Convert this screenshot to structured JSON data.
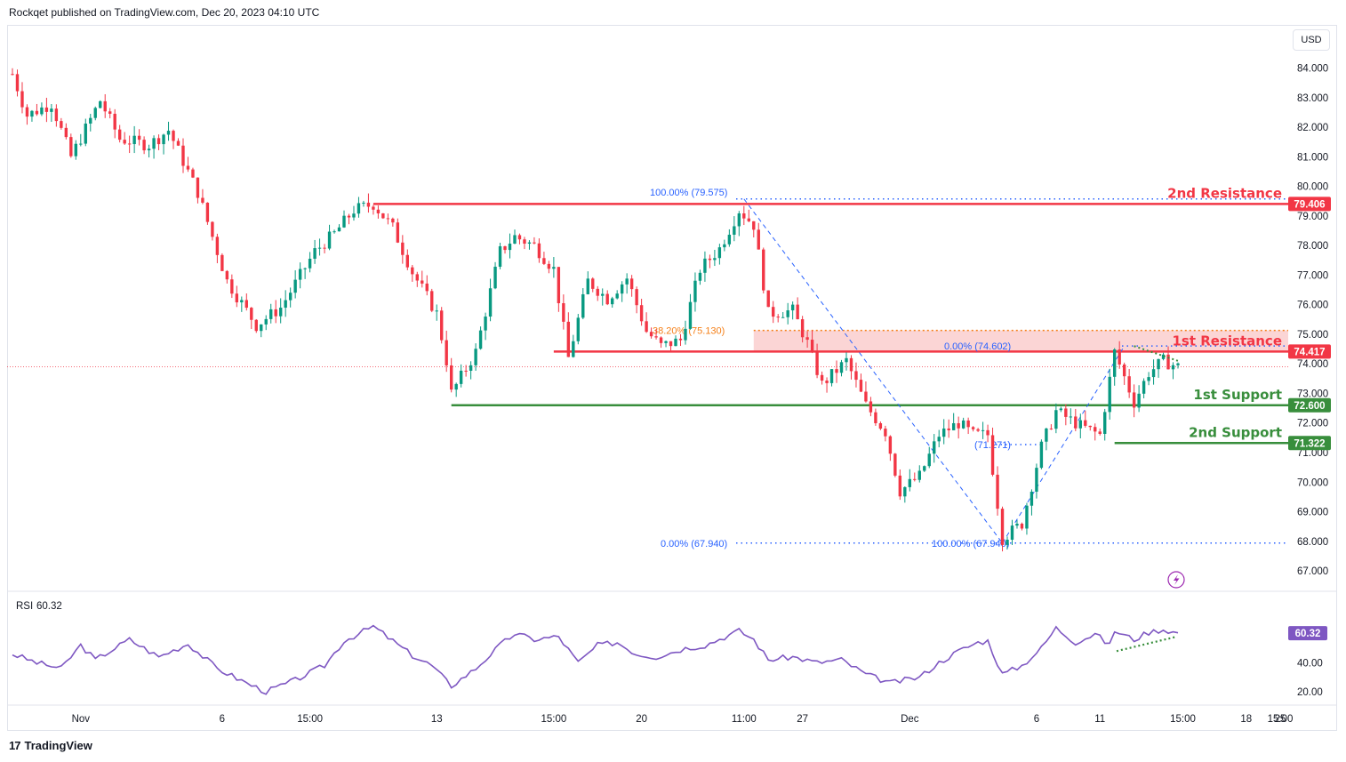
{
  "header": {
    "text": "Rockqet published on TradingView.com, Dec 20, 2023 04:10 UTC"
  },
  "currency_button": "USD",
  "footer": {
    "brand": "TradingView",
    "logo_mark": "17"
  },
  "chart_data": [
    {
      "type": "candlestick",
      "ylim": [
        66.4,
        85.4
      ],
      "y_ticks": [
        "84.000",
        "83.000",
        "82.000",
        "81.000",
        "80.000",
        "79.000",
        "78.000",
        "77.000",
        "76.000",
        "75.000",
        "74.000",
        "73.000",
        "72.000",
        "71.000",
        "70.000",
        "69.000",
        "68.000",
        "67.000"
      ],
      "x_ticks": [
        "Nov",
        "6",
        "15:00",
        "13",
        "15:00",
        "20",
        "11:00",
        "27",
        "Dec",
        "6",
        "11",
        "15:00",
        "18",
        "15:00",
        "25"
      ],
      "n_bars": 240,
      "anchors": [
        [
          0,
          83.8
        ],
        [
          3,
          82.4
        ],
        [
          8,
          82.8
        ],
        [
          12,
          81.0
        ],
        [
          18,
          82.9
        ],
        [
          22,
          81.6
        ],
        [
          28,
          81.4
        ],
        [
          32,
          81.9
        ],
        [
          38,
          79.8
        ],
        [
          44,
          76.8
        ],
        [
          50,
          75.3
        ],
        [
          55,
          75.9
        ],
        [
          62,
          77.8
        ],
        [
          66,
          78.4
        ],
        [
          70,
          79.2
        ],
        [
          74,
          79.4
        ],
        [
          78,
          78.6
        ],
        [
          82,
          77.1
        ],
        [
          87,
          75.7
        ],
        [
          89,
          74.1
        ],
        [
          90,
          73.0
        ],
        [
          95,
          74.4
        ],
        [
          100,
          77.8
        ],
        [
          103,
          78.3
        ],
        [
          107,
          78.0
        ],
        [
          111,
          77.2
        ],
        [
          114,
          74.2
        ],
        [
          118,
          76.8
        ],
        [
          122,
          76.2
        ],
        [
          126,
          76.9
        ],
        [
          130,
          75.1
        ],
        [
          133,
          74.6
        ],
        [
          137,
          74.8
        ],
        [
          141,
          77.2
        ],
        [
          145,
          77.9
        ],
        [
          149,
          79.2
        ],
        [
          152,
          78.7
        ],
        [
          155,
          75.7
        ],
        [
          160,
          75.8
        ],
        [
          163,
          74.7
        ],
        [
          166,
          73.3
        ],
        [
          171,
          74.1
        ],
        [
          175,
          72.6
        ],
        [
          179,
          71.7
        ],
        [
          182,
          69.7
        ],
        [
          186,
          70.2
        ],
        [
          190,
          71.6
        ],
        [
          194,
          72.0
        ],
        [
          197,
          71.6
        ],
        [
          200,
          71.6
        ],
        [
          203,
          68.1
        ],
        [
          207,
          68.6
        ],
        [
          211,
          71.2
        ],
        [
          214,
          72.4
        ],
        [
          219,
          71.9
        ],
        [
          223,
          71.6
        ],
        [
          226,
          74.4
        ],
        [
          230,
          72.7
        ],
        [
          233,
          73.7
        ],
        [
          236,
          74.1
        ],
        [
          239,
          73.9
        ]
      ],
      "levels": [
        {
          "label": "2nd Resistance",
          "value": 79.406,
          "tag": "79.406",
          "color": "#f23645"
        },
        {
          "label": "1st Resistance",
          "value": 74.417,
          "tag": "74.417",
          "color": "#f23645"
        },
        {
          "label": "1st Support",
          "value": 72.6,
          "tag": "72.600",
          "color": "#388e3c"
        },
        {
          "label": "2nd Support",
          "value": 71.322,
          "tag": "71.322",
          "color": "#388e3c"
        }
      ],
      "resistance_zone": [
        74.417,
        75.13
      ],
      "fib_labels": [
        {
          "text": "100.00% (79.575)",
          "value": 79.575
        },
        {
          "text": "0.00% (67.940)",
          "value": 67.94
        },
        {
          "text": "0.00% (74.602)",
          "value": 74.602
        },
        {
          "text": "100.00% (67.940)",
          "value": 67.94
        },
        {
          "text": "38.20% (75.130)",
          "value": 75.13
        },
        {
          "text": "(71.271)",
          "value": 71.271
        }
      ],
      "current_price": 73.9
    },
    {
      "type": "line",
      "title": "RSI",
      "value_label": "60.32",
      "tag": "60.32",
      "ylim": [
        12,
        88
      ],
      "y_ticks": [
        "60.00",
        "40.00",
        "20.00"
      ],
      "anchors": [
        [
          0,
          46
        ],
        [
          5,
          40
        ],
        [
          10,
          36
        ],
        [
          14,
          52
        ],
        [
          17,
          42
        ],
        [
          24,
          56
        ],
        [
          30,
          44
        ],
        [
          36,
          53
        ],
        [
          42,
          36
        ],
        [
          48,
          26
        ],
        [
          52,
          20
        ],
        [
          58,
          28
        ],
        [
          64,
          38
        ],
        [
          68,
          55
        ],
        [
          74,
          65
        ],
        [
          78,
          55
        ],
        [
          82,
          45
        ],
        [
          86,
          38
        ],
        [
          90,
          24
        ],
        [
          95,
          36
        ],
        [
          100,
          52
        ],
        [
          103,
          60
        ],
        [
          107,
          56
        ],
        [
          112,
          58
        ],
        [
          116,
          40
        ],
        [
          120,
          52
        ],
        [
          124,
          54
        ],
        [
          128,
          46
        ],
        [
          132,
          44
        ],
        [
          138,
          50
        ],
        [
          142,
          52
        ],
        [
          149,
          62
        ],
        [
          152,
          56
        ],
        [
          155,
          42
        ],
        [
          160,
          44
        ],
        [
          165,
          40
        ],
        [
          170,
          42
        ],
        [
          175,
          32
        ],
        [
          180,
          26
        ],
        [
          186,
          30
        ],
        [
          190,
          40
        ],
        [
          194,
          48
        ],
        [
          198,
          54
        ],
        [
          200,
          55
        ],
        [
          203,
          32
        ],
        [
          207,
          38
        ],
        [
          211,
          50
        ],
        [
          214,
          64
        ],
        [
          218,
          54
        ],
        [
          222,
          60
        ],
        [
          225,
          52
        ],
        [
          226,
          62
        ],
        [
          230,
          56
        ],
        [
          233,
          61
        ],
        [
          236,
          63
        ],
        [
          239,
          60.32
        ]
      ]
    }
  ],
  "colors": {
    "up": "#089981",
    "down": "#f23645",
    "rsi": "#7e57c2",
    "fib": "#2962ff",
    "support": "#388e3c",
    "resistance": "#f23645",
    "zone": "#f9c7c7",
    "fib_orange": "#f57f17"
  },
  "icons": {
    "bolt": "lightning-icon"
  }
}
